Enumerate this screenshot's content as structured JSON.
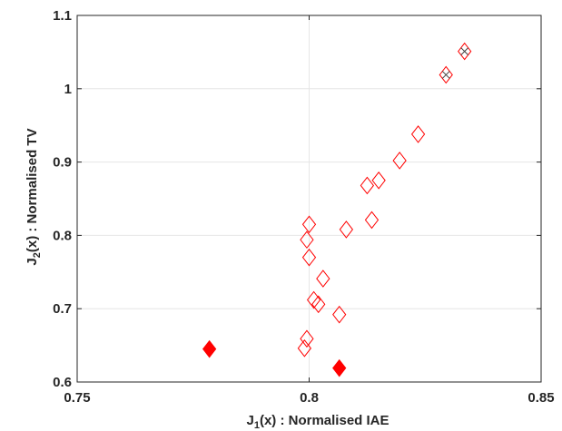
{
  "chart_data": {
    "type": "scatter",
    "title": "",
    "xlabel": {
      "prefix": "J",
      "sub": "1",
      "suffix": "(x) : Normalised IAE"
    },
    "ylabel": {
      "prefix": "J",
      "sub": "2",
      "suffix": "(x) : Normalised TV"
    },
    "xlim": [
      0.75,
      0.85
    ],
    "ylim": [
      0.6,
      1.1
    ],
    "xticks": [
      0.75,
      0.8,
      0.85
    ],
    "xtick_labels": [
      "0.75",
      "0.8",
      "0.85"
    ],
    "yticks": [
      0.6,
      0.7,
      0.8,
      0.9,
      1.0,
      1.1
    ],
    "ytick_labels": [
      "0.6",
      "0.7",
      "0.8",
      "0.9",
      "1",
      "1.1"
    ],
    "grid": true,
    "colors": {
      "marker": "#ff0000",
      "cross": "#404040",
      "axis": "#262626",
      "grid": "#e6e6e6"
    },
    "series": [
      {
        "marker": "diamond-open",
        "points": [
          [
            0.799,
            0.646
          ],
          [
            0.7995,
            0.659
          ],
          [
            0.8,
            0.815
          ],
          [
            0.7995,
            0.794
          ],
          [
            0.8,
            0.77
          ],
          [
            0.801,
            0.712
          ],
          [
            0.802,
            0.706
          ],
          [
            0.803,
            0.741
          ],
          [
            0.8065,
            0.692
          ],
          [
            0.808,
            0.808
          ],
          [
            0.8125,
            0.868
          ],
          [
            0.8135,
            0.821
          ],
          [
            0.815,
            0.875
          ],
          [
            0.8195,
            0.902
          ],
          [
            0.8235,
            0.938
          ],
          [
            0.8295,
            1.019
          ],
          [
            0.8335,
            1.051
          ]
        ]
      },
      {
        "marker": "diamond-filled",
        "points": [
          [
            0.7785,
            0.645
          ],
          [
            0.8065,
            0.619
          ]
        ]
      },
      {
        "marker": "cross",
        "points": [
          [
            0.8295,
            1.019
          ],
          [
            0.8335,
            1.051
          ]
        ]
      }
    ]
  }
}
